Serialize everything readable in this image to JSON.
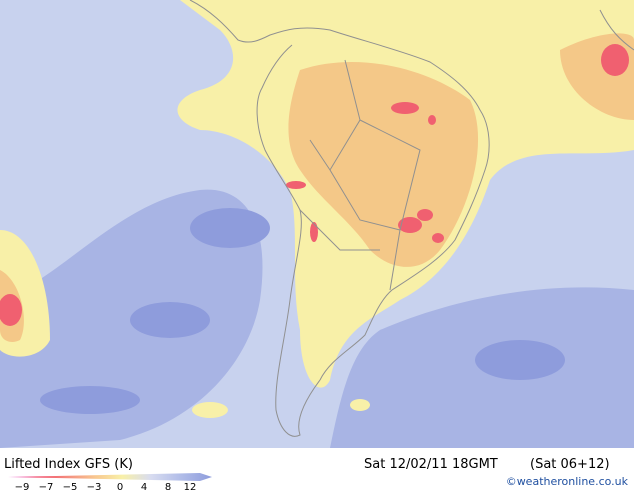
{
  "map": {
    "title": "Lifted Index GFS (K)",
    "datetime": "Sat 12/02/11 18GMT",
    "run": "(Sat 06+12)",
    "credit": "©weatheronline.co.uk",
    "legend": {
      "labels": [
        "−9",
        "−7",
        "−5",
        "−3",
        "0",
        "4",
        "8",
        "12"
      ]
    }
  }
}
